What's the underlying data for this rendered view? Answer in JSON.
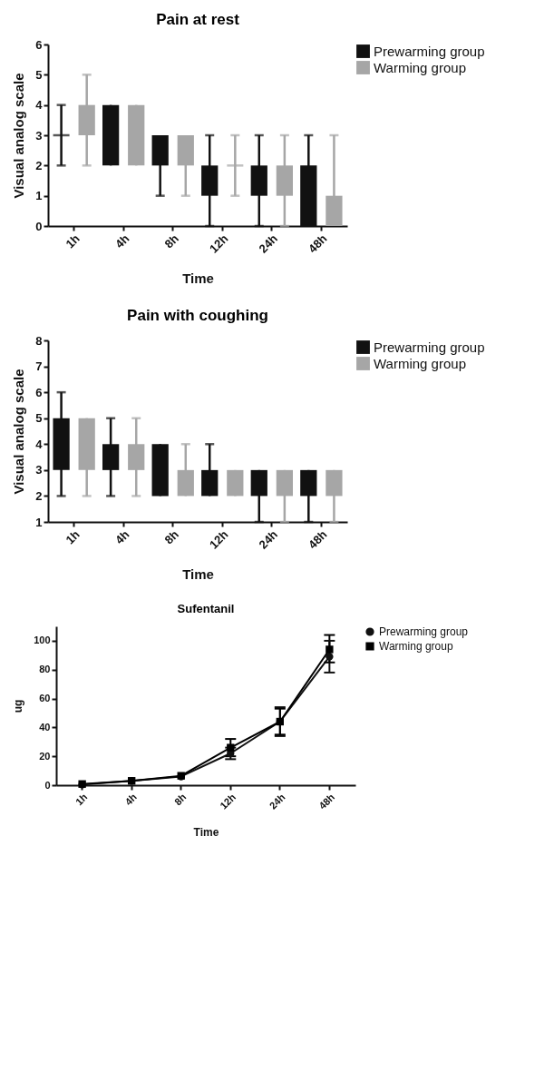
{
  "chart_data": [
    {
      "type": "box",
      "title": "Pain at rest",
      "xlabel": "Time",
      "ylabel": "Visual analog scale",
      "categories": [
        "1h",
        "4h",
        "8h",
        "12h",
        "24h",
        "48h"
      ],
      "ylim": [
        0,
        6
      ],
      "yticks": [
        0,
        1,
        2,
        3,
        4,
        5,
        6
      ],
      "grid": false,
      "legend": "top right",
      "series": [
        {
          "name": "Prewarming group",
          "color": "#111111",
          "boxes": [
            {
              "low": 2,
              "q1": 3,
              "median": 3,
              "q3": 3,
              "high": 4
            },
            {
              "low": 2,
              "q1": 2,
              "median": 2,
              "q3": 4,
              "high": 4
            },
            {
              "low": 1,
              "q1": 2,
              "median": 2,
              "q3": 3,
              "high": 3
            },
            {
              "low": 0,
              "q1": 1,
              "median": 1,
              "q3": 2,
              "high": 3
            },
            {
              "low": 0,
              "q1": 1,
              "median": 1,
              "q3": 2,
              "high": 3
            },
            {
              "low": 0,
              "q1": 0,
              "median": 0,
              "q3": 2,
              "high": 3
            }
          ]
        },
        {
          "name": "Warming group",
          "color": "#a6a6a6",
          "boxes": [
            {
              "low": 2,
              "q1": 3,
              "median": 3,
              "q3": 4,
              "high": 5
            },
            {
              "low": 2,
              "q1": 2,
              "median": 2,
              "q3": 4,
              "high": 4
            },
            {
              "low": 1,
              "q1": 2,
              "median": 2,
              "q3": 3,
              "high": 3
            },
            {
              "low": 1,
              "q1": 2,
              "median": 2,
              "q3": 2,
              "high": 3
            },
            {
              "low": 0,
              "q1": 1,
              "median": 1,
              "q3": 2,
              "high": 3
            },
            {
              "low": 0,
              "q1": 0,
              "median": 0,
              "q3": 1,
              "high": 3
            }
          ]
        }
      ]
    },
    {
      "type": "box",
      "title": "Pain with coughing",
      "xlabel": "Time",
      "ylabel": "Visual analog scale",
      "categories": [
        "1h",
        "4h",
        "8h",
        "12h",
        "24h",
        "48h"
      ],
      "ylim": [
        1,
        8
      ],
      "yticks": [
        1,
        2,
        3,
        4,
        5,
        6,
        7,
        8
      ],
      "grid": false,
      "legend": "top right",
      "series": [
        {
          "name": "Prewarming group",
          "color": "#111111",
          "boxes": [
            {
              "low": 2,
              "q1": 3,
              "median": 3,
              "q3": 5,
              "high": 6
            },
            {
              "low": 2,
              "q1": 3,
              "median": 3,
              "q3": 4,
              "high": 5
            },
            {
              "low": 2,
              "q1": 2,
              "median": 2,
              "q3": 4,
              "high": 4
            },
            {
              "low": 2,
              "q1": 2,
              "median": 2,
              "q3": 3,
              "high": 4
            },
            {
              "low": 1,
              "q1": 2,
              "median": 2,
              "q3": 3,
              "high": 3
            },
            {
              "low": 1,
              "q1": 2,
              "median": 2,
              "q3": 3,
              "high": 3
            }
          ]
        },
        {
          "name": "Warming group",
          "color": "#a6a6a6",
          "boxes": [
            {
              "low": 2,
              "q1": 3,
              "median": 3,
              "q3": 5,
              "high": 5
            },
            {
              "low": 2,
              "q1": 3,
              "median": 3,
              "q3": 4,
              "high": 5
            },
            {
              "low": 2,
              "q1": 2,
              "median": 2,
              "q3": 3,
              "high": 4
            },
            {
              "low": 2,
              "q1": 2,
              "median": 2,
              "q3": 3,
              "high": 3
            },
            {
              "low": 1,
              "q1": 2,
              "median": 2,
              "q3": 3,
              "high": 3
            },
            {
              "low": 1,
              "q1": 2,
              "median": 2,
              "q3": 3,
              "high": 3
            }
          ]
        }
      ]
    },
    {
      "type": "line",
      "title": "Sufentanil",
      "xlabel": "Time",
      "ylabel": "ug",
      "categories": [
        "1h",
        "4h",
        "8h",
        "12h",
        "24h",
        "48h"
      ],
      "ylim": [
        0,
        110
      ],
      "yticks": [
        0,
        20,
        40,
        60,
        80,
        100
      ],
      "grid": false,
      "legend": "top right",
      "line_style": "solid",
      "series": [
        {
          "name": "Prewarming group",
          "color": "#111111",
          "marker": "circle",
          "values": [
            0.5,
            3,
            6,
            22,
            44,
            89
          ],
          "errors": [
            null,
            null,
            null,
            4,
            10,
            11
          ]
        },
        {
          "name": "Warming group",
          "color": "#000000",
          "marker": "square",
          "values": [
            0.8,
            3,
            6.5,
            26,
            44,
            94
          ],
          "errors": [
            null,
            null,
            null,
            6,
            9,
            [
              85,
              104
            ]
          ]
        }
      ]
    }
  ]
}
